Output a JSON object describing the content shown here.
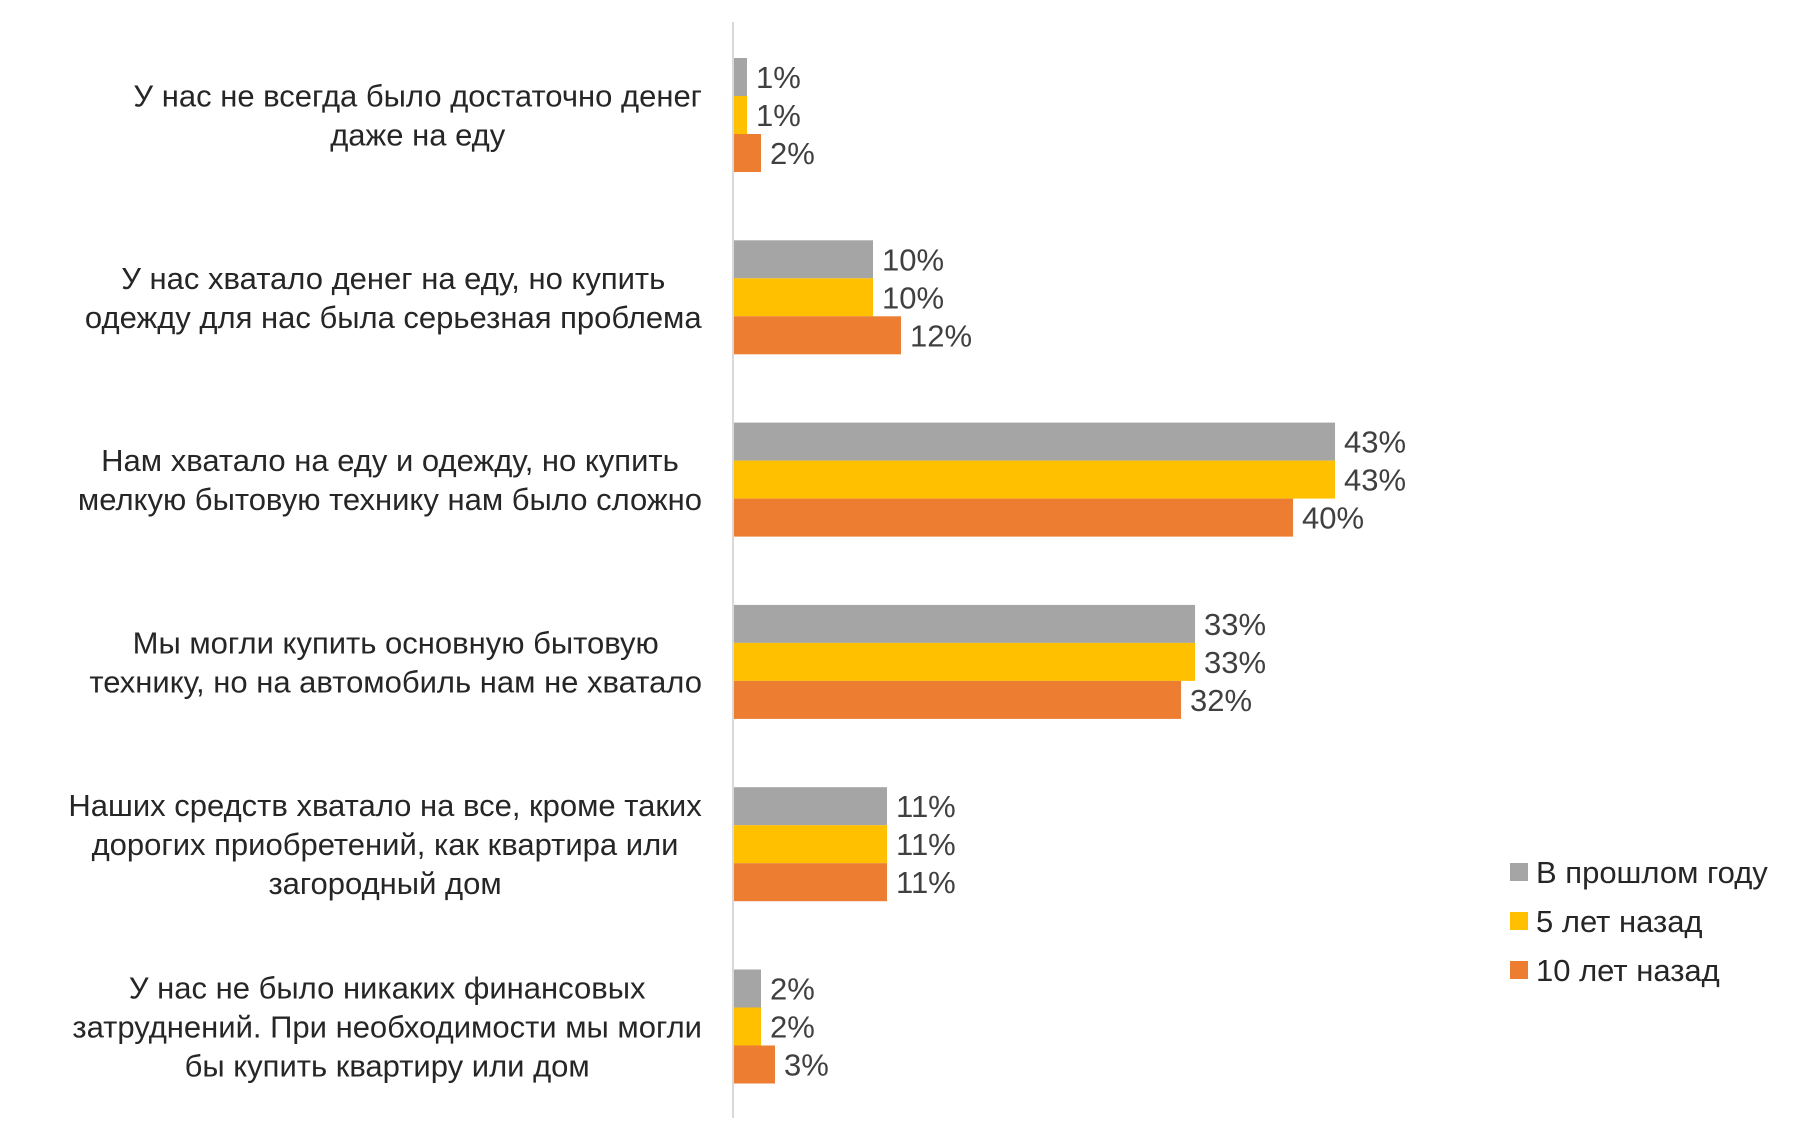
{
  "chart_data": {
    "type": "bar",
    "orientation": "horizontal",
    "grid": false,
    "legend_position": "right",
    "xlim": [
      0,
      45
    ],
    "value_suffix": "%",
    "categories": [
      [
        "У нас не всегда было достаточно денег",
        "даже на еду"
      ],
      [
        "У нас хватало денег на еду, но купить",
        "одежду для нас была серьезная проблема"
      ],
      [
        "Нам хватало на еду и одежду, но купить",
        "мелкую бытовую технику нам было сложно"
      ],
      [
        "Мы могли купить основную бытовую",
        "технику, но на автомобиль нам не хватало"
      ],
      [
        "Наших средств хватало на все, кроме таких",
        "дорогих приобретений, как квартира или",
        "загородный дом"
      ],
      [
        "У нас не было никаких финансовых",
        "затруднений. При необходимости мы могли",
        "бы купить квартиру или дом"
      ]
    ],
    "series": [
      {
        "name": "В прошлом году",
        "color": "#a5a5a5",
        "values": [
          1,
          10,
          43,
          33,
          11,
          2
        ]
      },
      {
        "name": "5 лет назад",
        "color": "#ffc000",
        "values": [
          1,
          10,
          43,
          33,
          11,
          2
        ]
      },
      {
        "name": "10 лет назад",
        "color": "#ed7d31",
        "values": [
          2,
          12,
          40,
          32,
          11,
          3
        ]
      }
    ],
    "colors": {
      "axis": "#d9d9d9",
      "text": "#262626",
      "label": "#404040"
    }
  }
}
